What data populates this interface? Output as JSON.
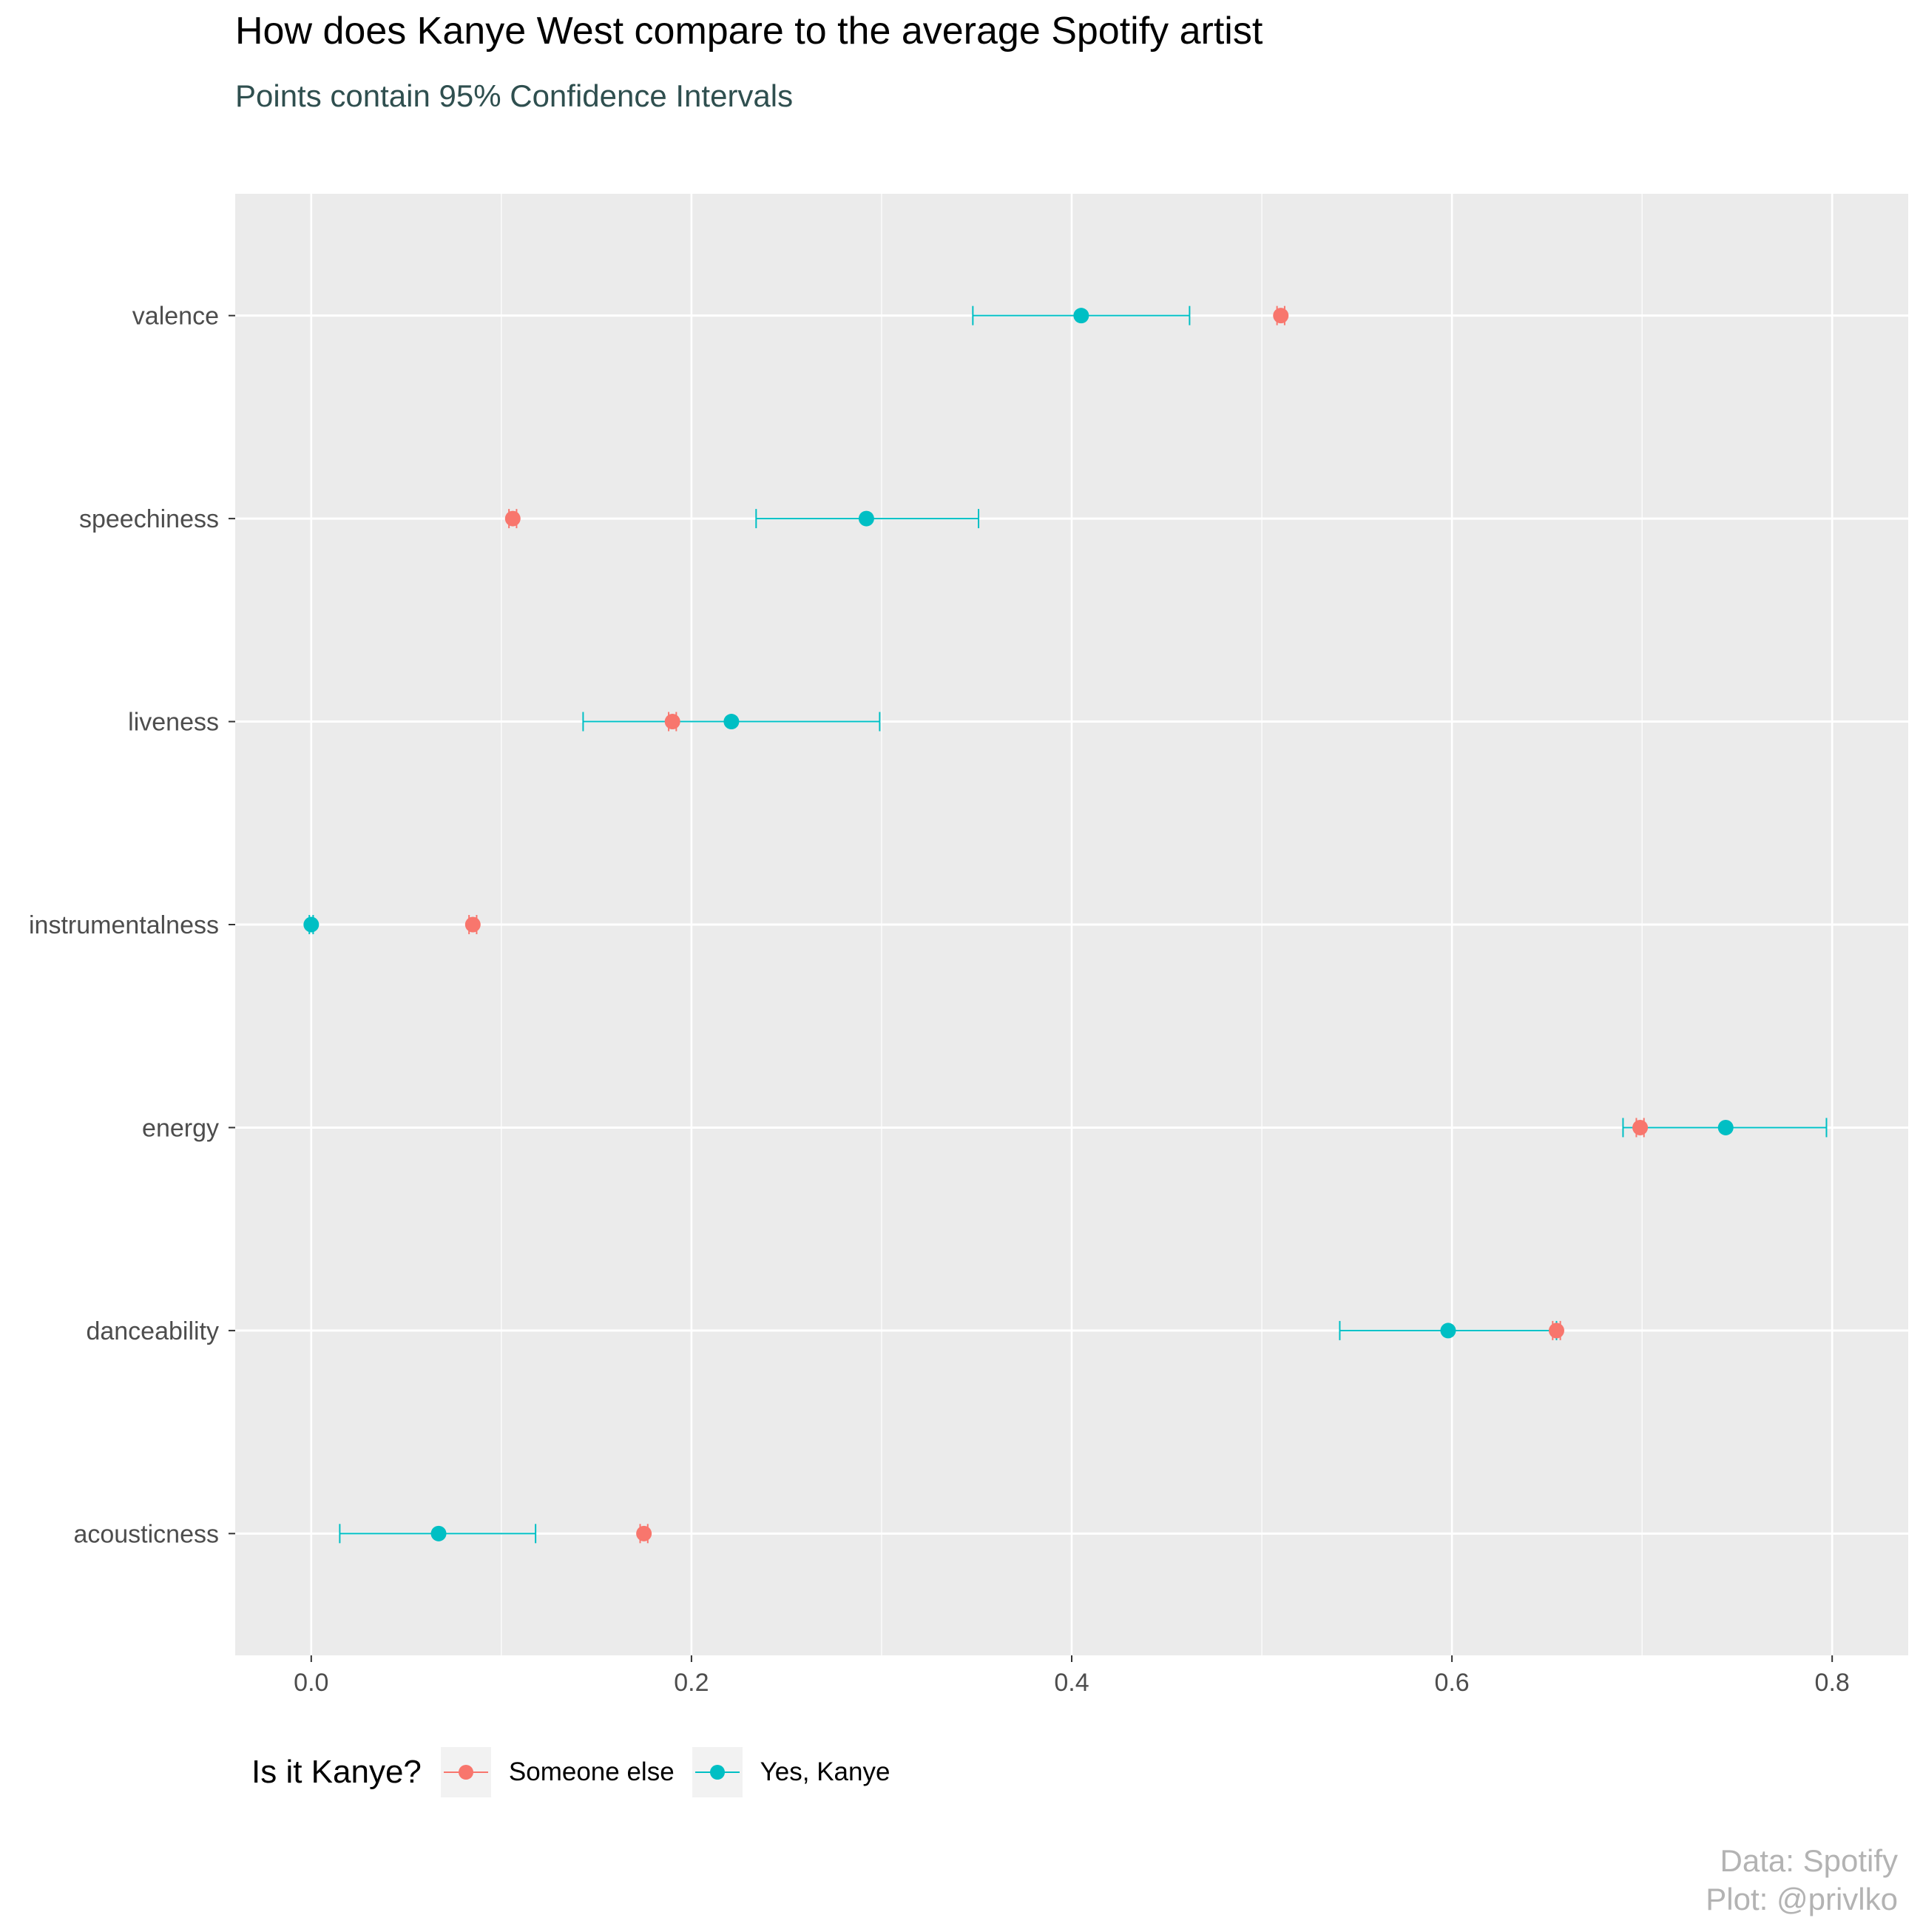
{
  "title": "How does Kanye West compare to the average Spotify artist",
  "subtitle": "Points contain 95% Confidence Intervals",
  "legend": {
    "title": "Is it Kanye?",
    "items": [
      {
        "label": "Someone else",
        "color": "#F8766D"
      },
      {
        "label": "Yes, Kanye",
        "color": "#00BFC4"
      }
    ]
  },
  "caption": {
    "line1": "Data: Spotify",
    "line2": "Plot: @privlko"
  },
  "chart_data": {
    "type": "scatter",
    "orientation": "horizontal",
    "categories": [
      "acousticness",
      "danceability",
      "energy",
      "instrumentalness",
      "liveness",
      "speechiness",
      "valence"
    ],
    "xlim": [
      -0.04,
      0.84
    ],
    "x_ticks": [
      0.0,
      0.2,
      0.4,
      0.6,
      0.8
    ],
    "x_tick_labels": [
      "0.0",
      "0.2",
      "0.4",
      "0.6",
      "0.8"
    ],
    "grid": true,
    "panel_background": "#EBEBEB",
    "legend_position": "bottom",
    "series": [
      {
        "name": "Someone else",
        "color": "#F8766D",
        "values": [
          0.175,
          0.655,
          0.699,
          0.085,
          0.19,
          0.106,
          0.51
        ],
        "ci_low": [
          0.173,
          0.653,
          0.697,
          0.083,
          0.188,
          0.104,
          0.508
        ],
        "ci_high": [
          0.177,
          0.657,
          0.701,
          0.087,
          0.192,
          0.108,
          0.512
        ]
      },
      {
        "name": "Yes, Kanye",
        "color": "#00BFC4",
        "values": [
          0.067,
          0.598,
          0.744,
          0.0,
          0.221,
          0.292,
          0.405
        ],
        "ci_low": [
          0.015,
          0.541,
          0.69,
          -0.001,
          0.143,
          0.234,
          0.348
        ],
        "ci_high": [
          0.118,
          0.655,
          0.797,
          0.001,
          0.299,
          0.351,
          0.462
        ]
      }
    ]
  }
}
